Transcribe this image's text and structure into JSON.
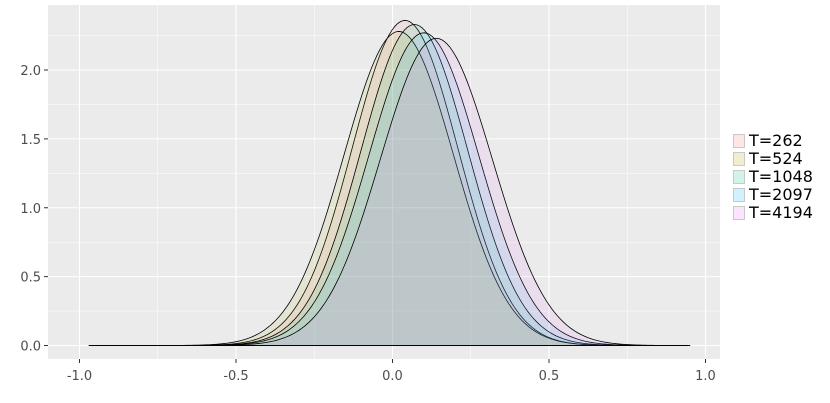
{
  "chart_data": {
    "type": "area",
    "title": "",
    "xlabel": "",
    "ylabel": "",
    "xlim": [
      -1.0,
      1.0
    ],
    "ylim": [
      0,
      2.35
    ],
    "x_ticks": [
      -1.0,
      -0.5,
      0.0,
      0.5,
      1.0
    ],
    "x_tick_labels": [
      "-1.0",
      "-0.5",
      "0.0",
      "0.5",
      "1.0"
    ],
    "y_ticks": [
      0.0,
      0.5,
      1.0,
      1.5,
      2.0
    ],
    "y_tick_labels": [
      "0.0",
      "0.5",
      "1.0",
      "1.5",
      "2.0"
    ],
    "x_range_drawn": [
      -0.97,
      0.95
    ],
    "grid": true,
    "legend_position": "right",
    "series": [
      {
        "name": "T=262",
        "peak_x": 0.04,
        "peak_y": 2.36,
        "sd": 0.169,
        "color": "#F8766D"
      },
      {
        "name": "T=524",
        "peak_x": 0.02,
        "peak_y": 2.28,
        "sd": 0.175,
        "color": "#A3A500"
      },
      {
        "name": "T=1048",
        "peak_x": 0.07,
        "peak_y": 2.33,
        "sd": 0.171,
        "color": "#00BF7D"
      },
      {
        "name": "T=2097",
        "peak_x": 0.1,
        "peak_y": 2.27,
        "sd": 0.176,
        "color": "#00B0F6"
      },
      {
        "name": "T=4194",
        "peak_x": 0.14,
        "peak_y": 2.23,
        "sd": 0.179,
        "color": "#E76BF3"
      }
    ]
  }
}
